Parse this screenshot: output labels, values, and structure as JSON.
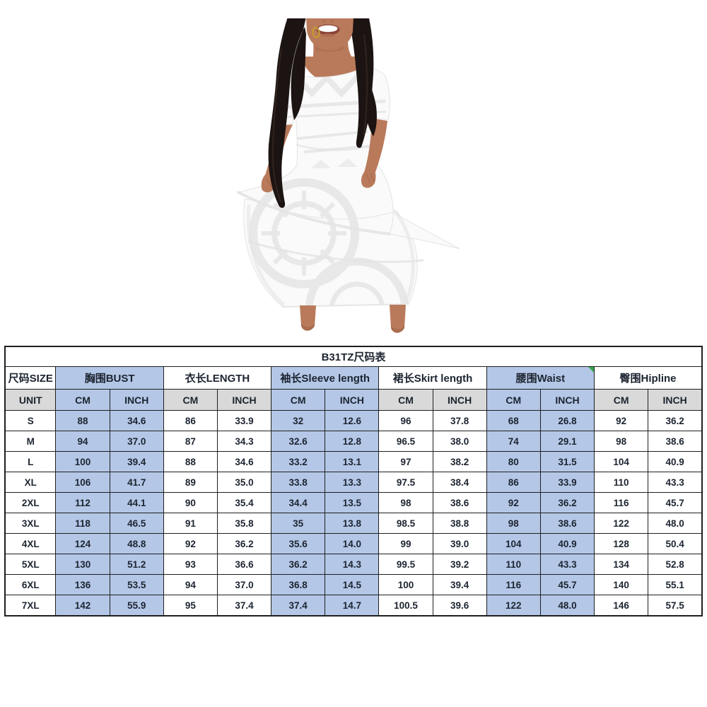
{
  "product": {
    "description": "Model wearing a white Polynesian tribal print puletasi-style dress with elbow-length sleeves and a layered long skirt, face cropped at mouth, long dark wavy hair, gold hoop earring",
    "colors": {
      "skin": "#b97a5b",
      "skin_shadow": "#9a5f43",
      "hair": "#1c1412",
      "hair_highlight": "#3a2b24",
      "dress": "#fafafa",
      "pattern": "#e7e7e7",
      "lips": "#8a4438",
      "earring": "#c59a33"
    }
  },
  "size_chart": {
    "title": "B31TZ尺码表",
    "unit_row": {
      "label": "UNIT",
      "cm": "CM",
      "inch": "INCH"
    },
    "columns": [
      {
        "key": "size",
        "label": "尺码SIZE",
        "highlight": false
      },
      {
        "key": "bust",
        "label": "胸围BUST",
        "highlight": true
      },
      {
        "key": "length",
        "label": "衣长LENGTH",
        "highlight": false
      },
      {
        "key": "sleeve-length",
        "label": "袖长Sleeve length",
        "highlight": true
      },
      {
        "key": "skirt-length",
        "label": "裙长Skirt length",
        "highlight": false
      },
      {
        "key": "waist",
        "label": "腰围Waist",
        "highlight": true,
        "corner_flag": true
      },
      {
        "key": "hipline",
        "label": "臀围Hipline",
        "highlight": false
      }
    ],
    "rows": [
      {
        "size": "S",
        "values": [
          "88",
          "34.6",
          "86",
          "33.9",
          "32",
          "12.6",
          "96",
          "37.8",
          "68",
          "26.8",
          "92",
          "36.2"
        ]
      },
      {
        "size": "M",
        "values": [
          "94",
          "37.0",
          "87",
          "34.3",
          "32.6",
          "12.8",
          "96.5",
          "38.0",
          "74",
          "29.1",
          "98",
          "38.6"
        ]
      },
      {
        "size": "L",
        "values": [
          "100",
          "39.4",
          "88",
          "34.6",
          "33.2",
          "13.1",
          "97",
          "38.2",
          "80",
          "31.5",
          "104",
          "40.9"
        ]
      },
      {
        "size": "XL",
        "values": [
          "106",
          "41.7",
          "89",
          "35.0",
          "33.8",
          "13.3",
          "97.5",
          "38.4",
          "86",
          "33.9",
          "110",
          "43.3"
        ]
      },
      {
        "size": "2XL",
        "values": [
          "112",
          "44.1",
          "90",
          "35.4",
          "34.4",
          "13.5",
          "98",
          "38.6",
          "92",
          "36.2",
          "116",
          "45.7"
        ]
      },
      {
        "size": "3XL",
        "values": [
          "118",
          "46.5",
          "91",
          "35.8",
          "35",
          "13.8",
          "98.5",
          "38.8",
          "98",
          "38.6",
          "122",
          "48.0"
        ]
      },
      {
        "size": "4XL",
        "values": [
          "124",
          "48.8",
          "92",
          "36.2",
          "35.6",
          "14.0",
          "99",
          "39.0",
          "104",
          "40.9",
          "128",
          "50.4"
        ]
      },
      {
        "size": "5XL",
        "values": [
          "130",
          "51.2",
          "93",
          "36.6",
          "36.2",
          "14.3",
          "99.5",
          "39.2",
          "110",
          "43.3",
          "134",
          "52.8"
        ]
      },
      {
        "size": "6XL",
        "values": [
          "136",
          "53.5",
          "94",
          "37.0",
          "36.8",
          "14.5",
          "100",
          "39.4",
          "116",
          "45.7",
          "140",
          "55.1"
        ]
      },
      {
        "size": "7XL",
        "values": [
          "142",
          "55.9",
          "95",
          "37.4",
          "37.4",
          "14.7",
          "100.5",
          "39.6",
          "122",
          "48.0",
          "146",
          "57.5"
        ]
      }
    ],
    "colors": {
      "highlight_blue": "#b4c7e7",
      "unit_gray": "#d9d9d9",
      "border": "#1f1f1f",
      "cell_text": "#1c2430",
      "corner_flag_green": "#2fa84f"
    }
  }
}
